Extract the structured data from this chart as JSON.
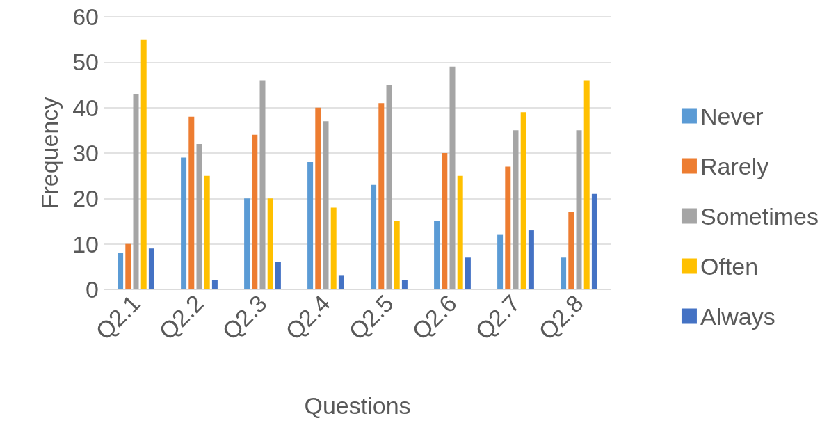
{
  "chart_data": {
    "type": "bar",
    "xlabel": "Questions",
    "ylabel": "Frequency",
    "categories": [
      "Q2.1",
      "Q2.2",
      "Q2.3",
      "Q2.4",
      "Q2.5",
      "Q2.6",
      "Q2.7",
      "Q2.8"
    ],
    "series": [
      {
        "name": "Never",
        "color": "#5b9bd5",
        "values": [
          8,
          29,
          20,
          28,
          23,
          15,
          12,
          7
        ]
      },
      {
        "name": "Rarely",
        "color": "#ed7d31",
        "values": [
          10,
          38,
          34,
          40,
          41,
          30,
          27,
          17
        ]
      },
      {
        "name": "Sometimes",
        "color": "#a5a5a5",
        "values": [
          43,
          32,
          46,
          37,
          45,
          49,
          35,
          35
        ]
      },
      {
        "name": "Often",
        "color": "#ffc000",
        "values": [
          55,
          25,
          20,
          18,
          15,
          25,
          39,
          46
        ]
      },
      {
        "name": "Always",
        "color": "#4472c4",
        "values": [
          9,
          2,
          6,
          3,
          2,
          7,
          13,
          21
        ]
      }
    ],
    "ylim": [
      0,
      60
    ],
    "yticks": [
      0,
      10,
      20,
      30,
      40,
      50,
      60
    ],
    "grid": "y",
    "legend": "right"
  }
}
